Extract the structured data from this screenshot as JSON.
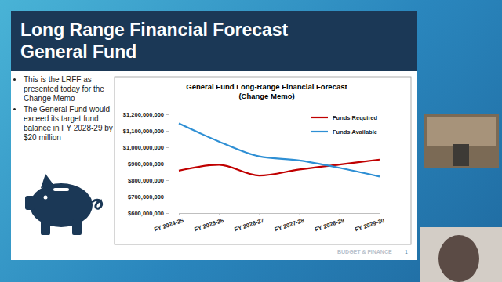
{
  "chart_data": {
    "type": "line",
    "title": "General Fund Long-Range Financial Forecast",
    "subtitle": "(Change Memo)",
    "categories": [
      "FY 2024-25",
      "FY 2025-26",
      "FY 2026-27",
      "FY 2027-28",
      "FY 2028-29",
      "FY 2029-30"
    ],
    "series": [
      {
        "name": "Funds Required",
        "color": "#c00000",
        "values": [
          858000000,
          893000000,
          828000000,
          865000000,
          895000000,
          925000000
        ]
      },
      {
        "name": "Funds Available",
        "color": "#2e8fd4",
        "values": [
          1145000000,
          1035000000,
          945000000,
          920000000,
          875000000,
          822000000
        ]
      }
    ],
    "ylim": [
      600000000,
      1200000000
    ],
    "yticks": [
      {
        "value": 600000000,
        "label": "$600,000,000"
      },
      {
        "value": 700000000,
        "label": "$700,000,000"
      },
      {
        "value": 800000000,
        "label": "$800,000,000"
      },
      {
        "value": 900000000,
        "label": "$900,000,000"
      },
      {
        "value": 1000000000,
        "label": "$1,000,000,000"
      },
      {
        "value": 1100000000,
        "label": "$1,100,000,000"
      },
      {
        "value": 1200000000,
        "label": "$1,200,000,000"
      }
    ],
    "grid": false,
    "legend": "top-right",
    "line_style": "smooth",
    "marker": "none"
  },
  "slide": {
    "title": [
      "Long Range Financial Forecast",
      "General Fund"
    ],
    "bullets": [
      "This is the LRFF as presented today for the Change Memo",
      "The General Fund would exceed its target fund balance in FY 2028-29 by $20 million"
    ],
    "footer": "BUDGET & FINANCE",
    "page": "1"
  }
}
